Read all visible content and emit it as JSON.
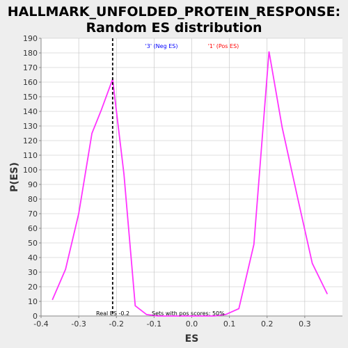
{
  "title_line1": "HALLMARK_UNFOLDED_PROTEIN_RESPONSE:",
  "title_line2": "Random ES distribution",
  "legend": {
    "neg": {
      "label": "'3' (Neg ES)",
      "color": "#0000ff"
    },
    "pos": {
      "label": "'1' (Pos ES)",
      "color": "#ff0000"
    }
  },
  "annotations": {
    "real_es": "Real ES -0.2",
    "pos_scores": "Sets with pos scores: 50%"
  },
  "colors": {
    "line": "#ff33ff",
    "plot_bg": "#ffffff",
    "page_bg": "#eeeeee",
    "grid": "#c0c0c0",
    "real_es_line": "#000000"
  },
  "chart_data": {
    "type": "line",
    "title": "HALLMARK_UNFOLDED_PROTEIN_RESPONSE: Random ES distribution",
    "xlabel": "ES",
    "ylabel": "P(ES)",
    "xlim": [
      -0.4,
      0.4
    ],
    "ylim": [
      0,
      190
    ],
    "xticks": [
      -0.4,
      -0.3,
      -0.2,
      -0.1,
      0.0,
      0.1,
      0.2,
      0.3
    ],
    "xtick_labels": [
      "-0.4",
      "-0.3",
      "-0.2",
      "-0.1",
      "0.0",
      "0.1",
      "0.2",
      "0.3"
    ],
    "yticks": [
      0,
      10,
      20,
      30,
      40,
      50,
      60,
      70,
      80,
      90,
      100,
      110,
      120,
      130,
      140,
      150,
      160,
      170,
      180,
      190
    ],
    "grid": true,
    "real_es": -0.21,
    "series": [
      {
        "x": [
          -0.37,
          -0.335,
          -0.3,
          -0.265,
          -0.24,
          -0.21,
          -0.18,
          -0.15,
          -0.12,
          -0.09,
          -0.06,
          -0.03,
          0.0,
          0.03,
          0.06,
          0.09,
          0.125,
          0.165,
          0.205,
          0.24,
          0.28,
          0.32,
          0.36
        ],
        "values": [
          11,
          32,
          70,
          125,
          141,
          162,
          97,
          7,
          1,
          0,
          0,
          0,
          0,
          0,
          0,
          1,
          5,
          49,
          181,
          129,
          82,
          36,
          15
        ]
      }
    ]
  }
}
